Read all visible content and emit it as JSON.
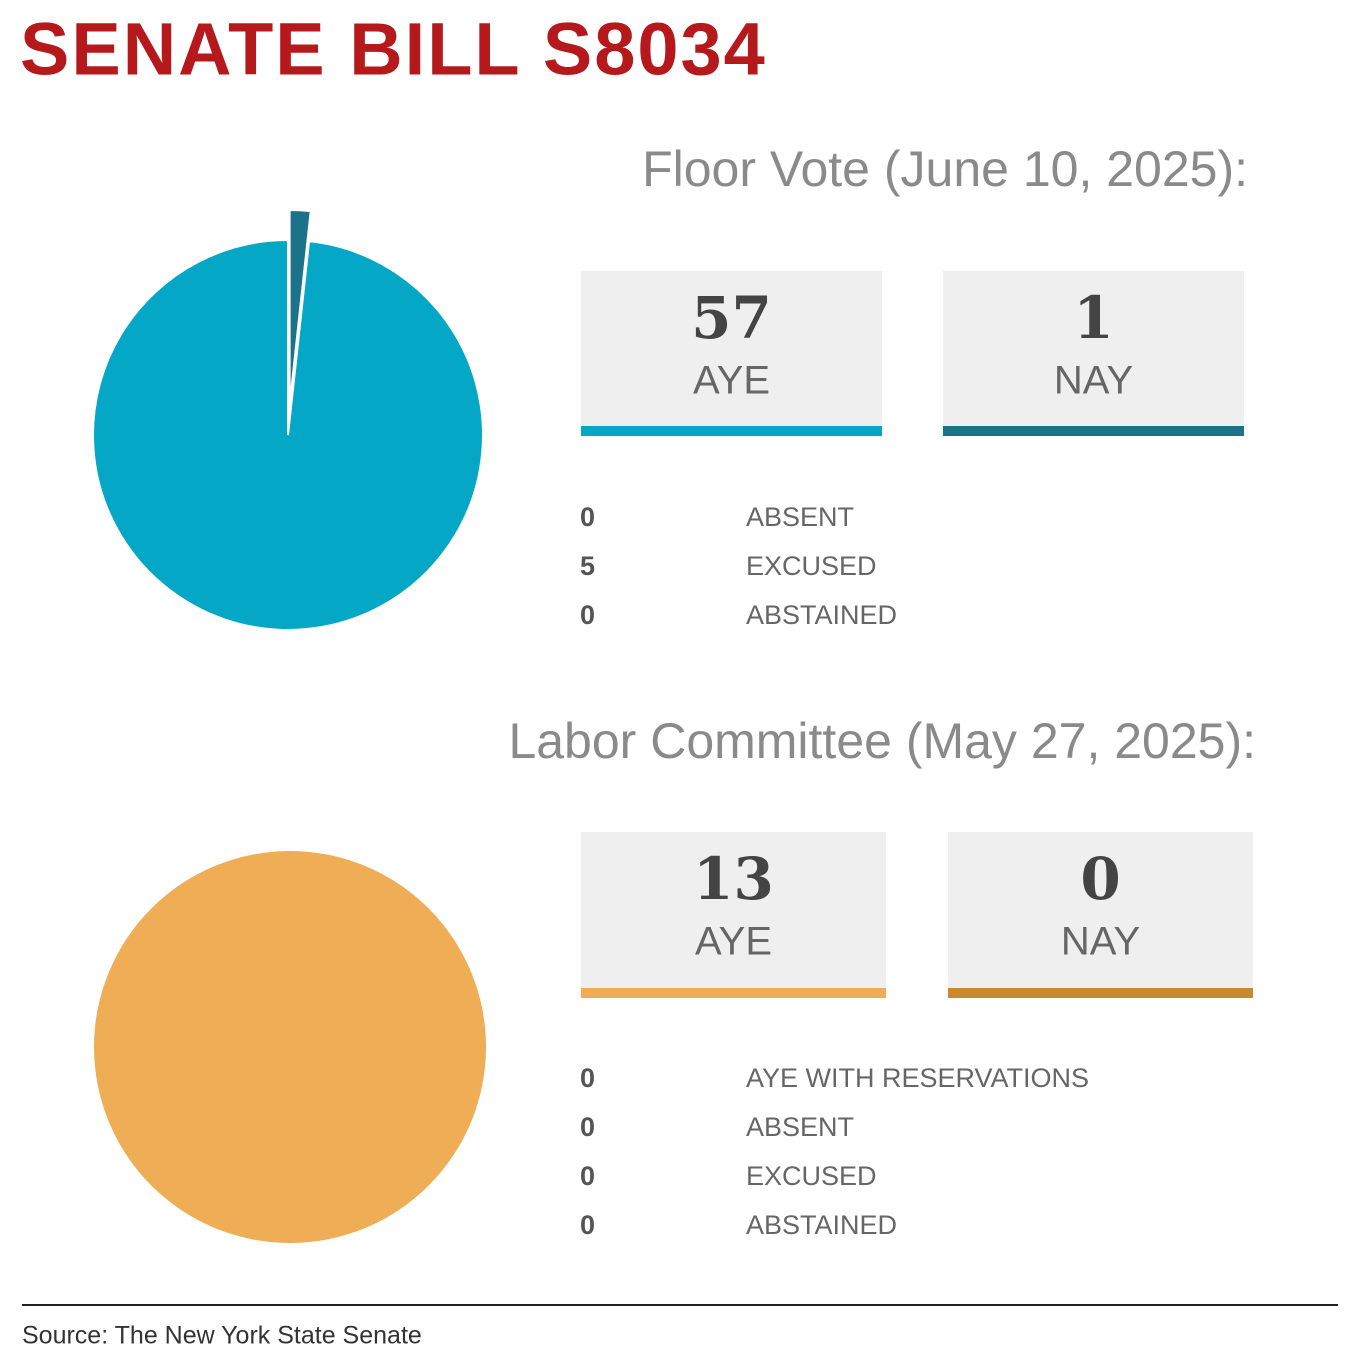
{
  "title": "SENATE BILL S8034",
  "chart_data": [
    {
      "type": "pie",
      "title": "Floor Vote (June 10, 2025):",
      "categories": [
        "AYE",
        "NAY"
      ],
      "values": [
        57,
        1
      ],
      "colors": [
        "#04a8c6",
        "#1b7389"
      ],
      "details": {
        "categories": [
          "ABSENT",
          "EXCUSED",
          "ABSTAINED"
        ],
        "values": [
          0,
          5,
          0
        ]
      }
    },
    {
      "type": "pie",
      "title": "Labor Committee (May 27, 2025):",
      "categories": [
        "AYE",
        "NAY"
      ],
      "values": [
        13,
        0
      ],
      "colors": [
        "#efad55",
        "#c98a2c"
      ],
      "details": {
        "categories": [
          "AYE WITH RESERVATIONS",
          "ABSENT",
          "EXCUSED",
          "ABSTAINED"
        ],
        "values": [
          0,
          0,
          0,
          0
        ]
      }
    }
  ],
  "source": "Source: The New York State Senate"
}
